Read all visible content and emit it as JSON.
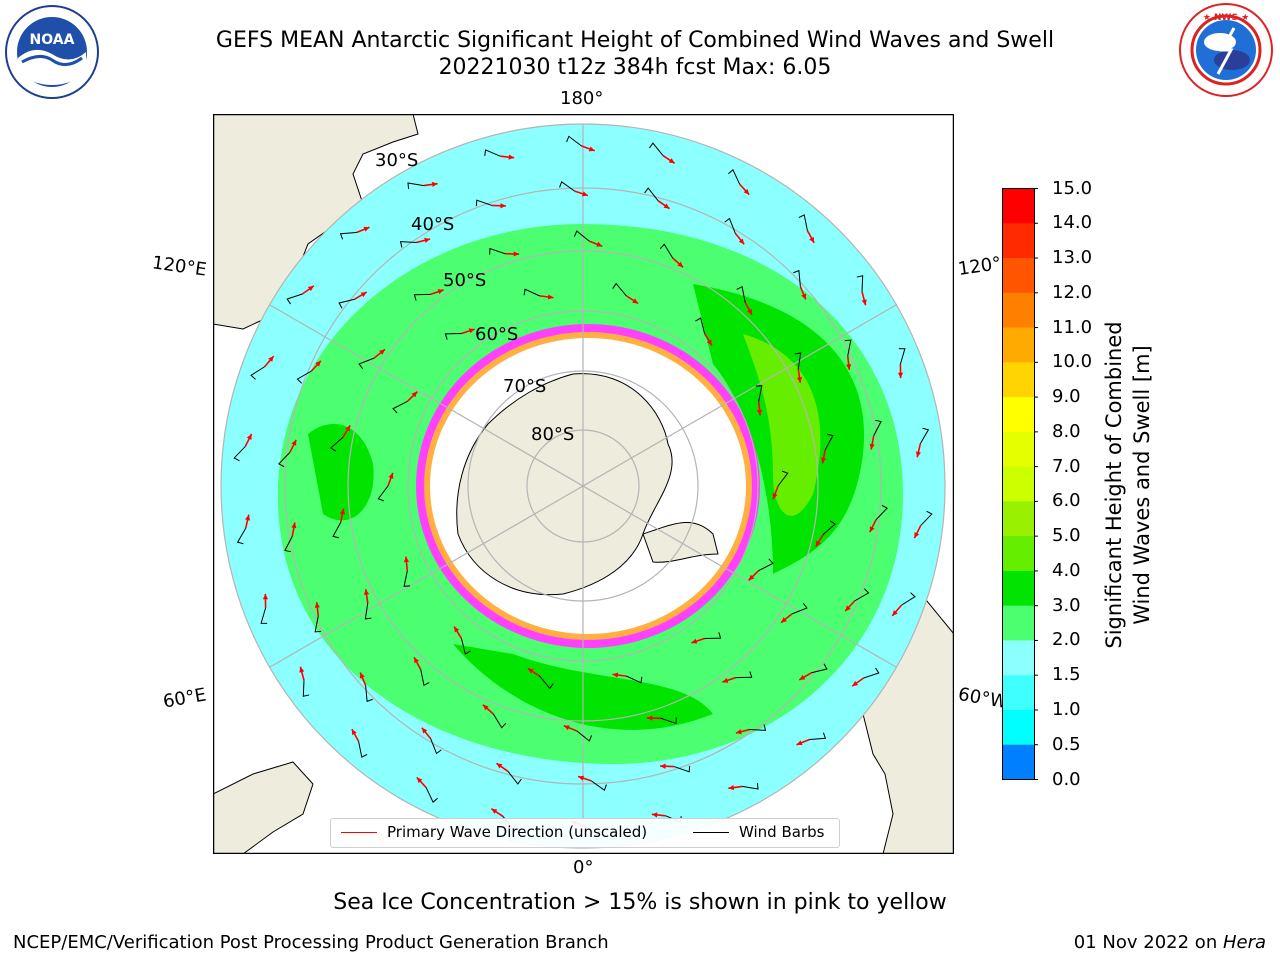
{
  "header": {
    "title_line1": "GEFS MEAN Antarctic Significant Height of Combined Wind Waves and Swell",
    "title_line2": "20221030 t12z 384h fcst   Max: 6.05"
  },
  "logos": {
    "left": {
      "name": "noaa-logo",
      "text": "NOAA",
      "ring_text": "NATIONAL OCEANIC AND ATMOSPHERIC ADMINISTRATION · U.S. DEPARTMENT OF COMMERCE"
    },
    "right": {
      "name": "nws-logo",
      "ring_text": "NATIONAL WEATHER SERVICE"
    }
  },
  "map": {
    "projection": "south-polar-stereographic",
    "lon_labels": {
      "top": "180°",
      "bottom": "0°",
      "left_upper": "120°E",
      "left_lower": "60°E",
      "right_upper": "120°",
      "right_lower": "60°W"
    },
    "lat_labels": [
      "30°S",
      "40°S",
      "50°S",
      "60°S",
      "70°S",
      "80°S"
    ],
    "colors": {
      "land": "#eeecdc",
      "ocean_low": "#8cffff",
      "wave_3_4": "#4cff70",
      "wave_4_5": "#00e400",
      "wave_5_6": "#66ee00",
      "ice_pink": "#ff40ff",
      "ice_yellow": "#ffb040",
      "arrow": "#ff0000",
      "barb": "#000000",
      "grid": "#b4b4b4"
    }
  },
  "legend": {
    "primary_wave": "Primary Wave Direction (unscaled)",
    "wind_barbs": "Wind Barbs"
  },
  "colorbar": {
    "label_line1": "Significant Height of Combined",
    "label_line2": "Wind Waves and Swell [m]",
    "ticks": [
      "15.0",
      "14.0",
      "13.0",
      "12.0",
      "11.0",
      "10.0",
      "9.0",
      "8.0",
      "7.0",
      "6.0",
      "5.0",
      "4.0",
      "3.0",
      "2.0",
      "1.5",
      "1.0",
      "0.5",
      "0.0"
    ],
    "colors": [
      "#ff0000",
      "#ff2a00",
      "#ff5500",
      "#ff8000",
      "#ffaa00",
      "#ffd400",
      "#ffff00",
      "#e6ff00",
      "#ccff00",
      "#99f000",
      "#66ee00",
      "#00e400",
      "#4cff70",
      "#8cffff",
      "#40ffff",
      "#00ffff",
      "#0080ff",
      "#0000ff"
    ]
  },
  "footer": {
    "subtitle": "Sea Ice Concentration > 15% is shown in pink to yellow",
    "left": "NCEP/EMC/Verification Post Processing Product Generation Branch",
    "right_prefix": "01 Nov 2022 on ",
    "right_machine": "Hera"
  }
}
